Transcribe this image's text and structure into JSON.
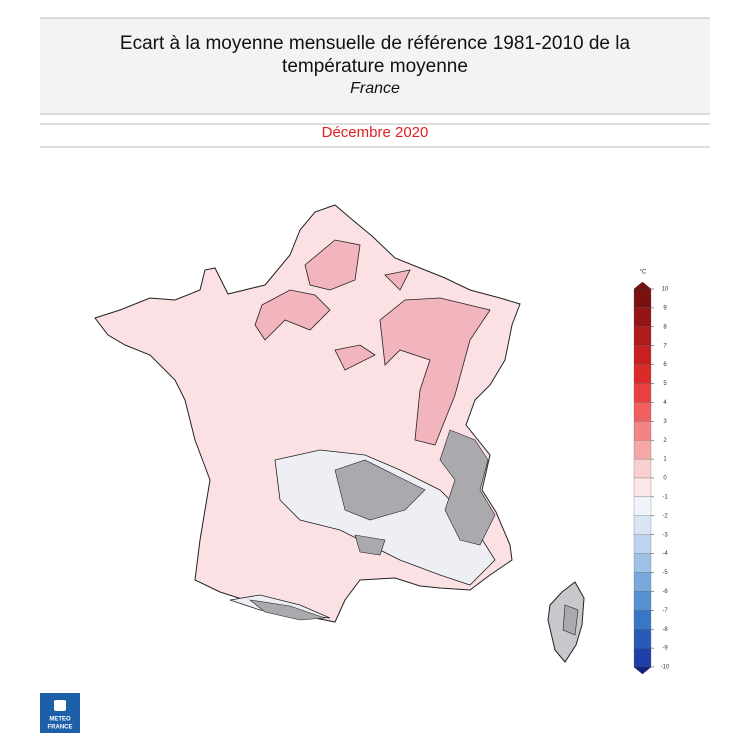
{
  "header": {
    "title_lines": [
      "Ecart à la moyenne mensuelle de référence 1981-2010 de la",
      "température moyenne"
    ],
    "region": "France",
    "period": "Décembre 2020"
  },
  "colorbar": {
    "unit": "°C",
    "ticks": [
      10,
      9,
      8,
      7,
      6,
      5,
      4,
      3,
      2,
      1,
      0,
      -1,
      -2,
      -3,
      -4,
      -5,
      -6,
      -7,
      -8,
      -9,
      -10
    ],
    "colors": [
      "#7a1010",
      "#951414",
      "#b01a1a",
      "#c82020",
      "#dc2a2a",
      "#ea4040",
      "#f06060",
      "#f38484",
      "#f6a8a8",
      "#f9d0d0",
      "#fce8e8",
      "#eef4fa",
      "#d8e6f4",
      "#bcd4ee",
      "#9cc0e6",
      "#78a8dc",
      "#5590d2",
      "#3a76c6",
      "#2a5ab8",
      "#1e3ea8",
      "#141f8a"
    ]
  },
  "logo": {
    "lines": [
      "METEO",
      "FRANCE"
    ]
  }
}
